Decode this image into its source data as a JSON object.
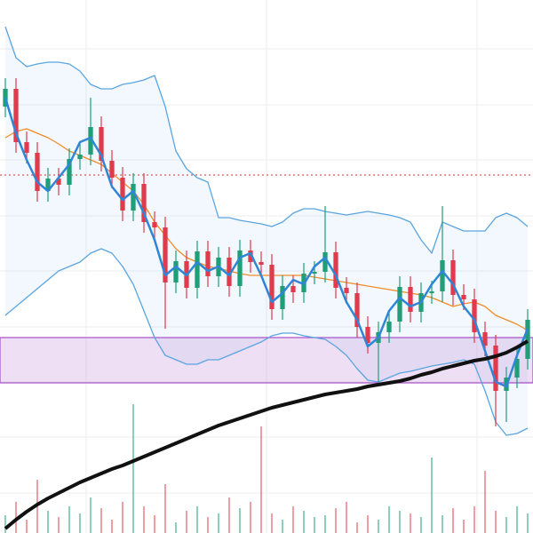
{
  "chart_data": {
    "type": "candlestick",
    "xlim": [
      -0.5,
      49.5
    ],
    "xticks": [
      7.58,
      24.5,
      44.25
    ],
    "ylim": [
      0,
      600
    ],
    "yticks": [
      545,
      482,
      420,
      357,
      295,
      232,
      170,
      108,
      45
    ],
    "grid": true,
    "up_color": "#1f9e77",
    "down_color": "#e03a4c",
    "open": [
      480,
      500,
      440,
      428,
      385,
      399,
      392,
      421,
      426,
      457,
      419,
      400,
      363,
      393,
      350,
      344,
      282,
      306,
      276,
      317,
      289,
      310,
      278,
      318,
      305,
      302,
      252,
      278,
      271,
      292,
      294,
      316,
      276,
      270,
      232,
      214,
      226,
      238,
      277,
      249,
      270,
      272,
      307,
      268,
      263,
      226,
      211,
      160,
      175,
      196
    ],
    "high": [
      512,
      512,
      452,
      440,
      411,
      411,
      433,
      438,
      490,
      469,
      431,
      412,
      405,
      405,
      362,
      356,
      318,
      318,
      329,
      329,
      322,
      322,
      330,
      330,
      317,
      314,
      290,
      290,
      304,
      306,
      368,
      328,
      288,
      282,
      244,
      238,
      250,
      289,
      289,
      282,
      284,
      368,
      319,
      280,
      275,
      238,
      223,
      187,
      208,
      252
    ],
    "low": [
      468,
      428,
      416,
      373,
      373,
      380,
      380,
      409,
      414,
      407,
      388,
      351,
      351,
      338,
      332,
      230,
      270,
      264,
      264,
      277,
      277,
      266,
      266,
      293,
      290,
      240,
      240,
      259,
      259,
      280,
      282,
      264,
      258,
      220,
      202,
      170,
      214,
      226,
      237,
      237,
      258,
      260,
      256,
      251,
      214,
      199,
      120,
      125,
      163,
      184
    ],
    "close": [
      500,
      440,
      428,
      385,
      399,
      392,
      421,
      426,
      457,
      419,
      400,
      363,
      393,
      350,
      344,
      282,
      306,
      276,
      317,
      289,
      310,
      278,
      318,
      305,
      302,
      252,
      278,
      271,
      292,
      294,
      316,
      276,
      270,
      232,
      214,
      226,
      238,
      277,
      249,
      270,
      272,
      307,
      268,
      263,
      226,
      211,
      160,
      175,
      196,
      240
    ],
    "volume": [
      20,
      35,
      15,
      60,
      25,
      18,
      30,
      22,
      40,
      28,
      15,
      35,
      145,
      30,
      20,
      55,
      12,
      25,
      30,
      18,
      22,
      40,
      28,
      35,
      120,
      22,
      15,
      30,
      25,
      18,
      20,
      28,
      35,
      12,
      20,
      15,
      30,
      25,
      22,
      18,
      85,
      20,
      28,
      15,
      30,
      70,
      25,
      18,
      30,
      22
    ],
    "volume_ylim": [
      0,
      600
    ],
    "lines": [
      {
        "name": "upper-band",
        "color": "#5aa5e0",
        "values": [
          570,
          535,
          525,
          528,
          530,
          530,
          528,
          520,
          505,
          500,
          500,
          505,
          507,
          510,
          515,
          480,
          430,
          410,
          400,
          395,
          355,
          355,
          352,
          350,
          348,
          345,
          350,
          360,
          365,
          365,
          362,
          360,
          358,
          360,
          362,
          360,
          358,
          355,
          350,
          330,
          315,
          350,
          345,
          340,
          340,
          340,
          355,
          360,
          355,
          345
        ]
      },
      {
        "name": "lower-band",
        "color": "#5aa5e0",
        "values": [
          245,
          255,
          265,
          275,
          285,
          295,
          300,
          305,
          315,
          320,
          315,
          300,
          280,
          250,
          220,
          200,
          195,
          190,
          190,
          195,
          195,
          200,
          205,
          210,
          215,
          222,
          225,
          225,
          222,
          220,
          218,
          210,
          200,
          185,
          172,
          170,
          175,
          180,
          182,
          185,
          188,
          190,
          192,
          195,
          190,
          160,
          125,
          110,
          112,
          118
        ]
      },
      {
        "name": "middle-band",
        "color": "#f28c28",
        "values": [
          445,
          452,
          455,
          450,
          445,
          438,
          430,
          425,
          420,
          415,
          405,
          395,
          385,
          370,
          350,
          335,
          320,
          310,
          305,
          300,
          298,
          295,
          292,
          290,
          290,
          290,
          290,
          290,
          290,
          288,
          286,
          284,
          282,
          280,
          278,
          276,
          274,
          272,
          270,
          268,
          265,
          260,
          255,
          258,
          260,
          255,
          245,
          240,
          235,
          228
        ]
      },
      {
        "name": "fast-ma",
        "color": "#2f86d6",
        "values": [
          490,
          450,
          420,
          395,
          385,
          400,
          415,
          440,
          445,
          425,
          390,
          375,
          385,
          360,
          330,
          290,
          300,
          290,
          305,
          295,
          300,
          290,
          310,
          315,
          290,
          260,
          270,
          285,
          280,
          300,
          310,
          290,
          260,
          240,
          210,
          220,
          250,
          265,
          255,
          260,
          280,
          295,
          280,
          255,
          240,
          205,
          170,
          165,
          200,
          230
        ]
      },
      {
        "name": "slow-ma",
        "color": "#111111",
        "values": [
          5,
          15,
          24,
          32,
          39,
          45,
          51,
          57,
          62,
          67,
          72,
          76,
          81,
          86,
          91,
          96,
          101,
          106,
          111,
          116,
          121,
          125,
          129,
          133,
          137,
          141,
          144,
          147,
          150,
          153,
          156,
          158,
          160,
          162,
          165,
          167,
          169,
          171,
          174,
          178,
          181,
          185,
          188,
          191,
          194,
          196,
          199,
          203,
          209,
          216
        ]
      }
    ],
    "level": {
      "value": 403,
      "color": "#e05a5a"
    },
    "zone": {
      "from": 169,
      "to": 220,
      "color": "#a64fc9"
    }
  }
}
